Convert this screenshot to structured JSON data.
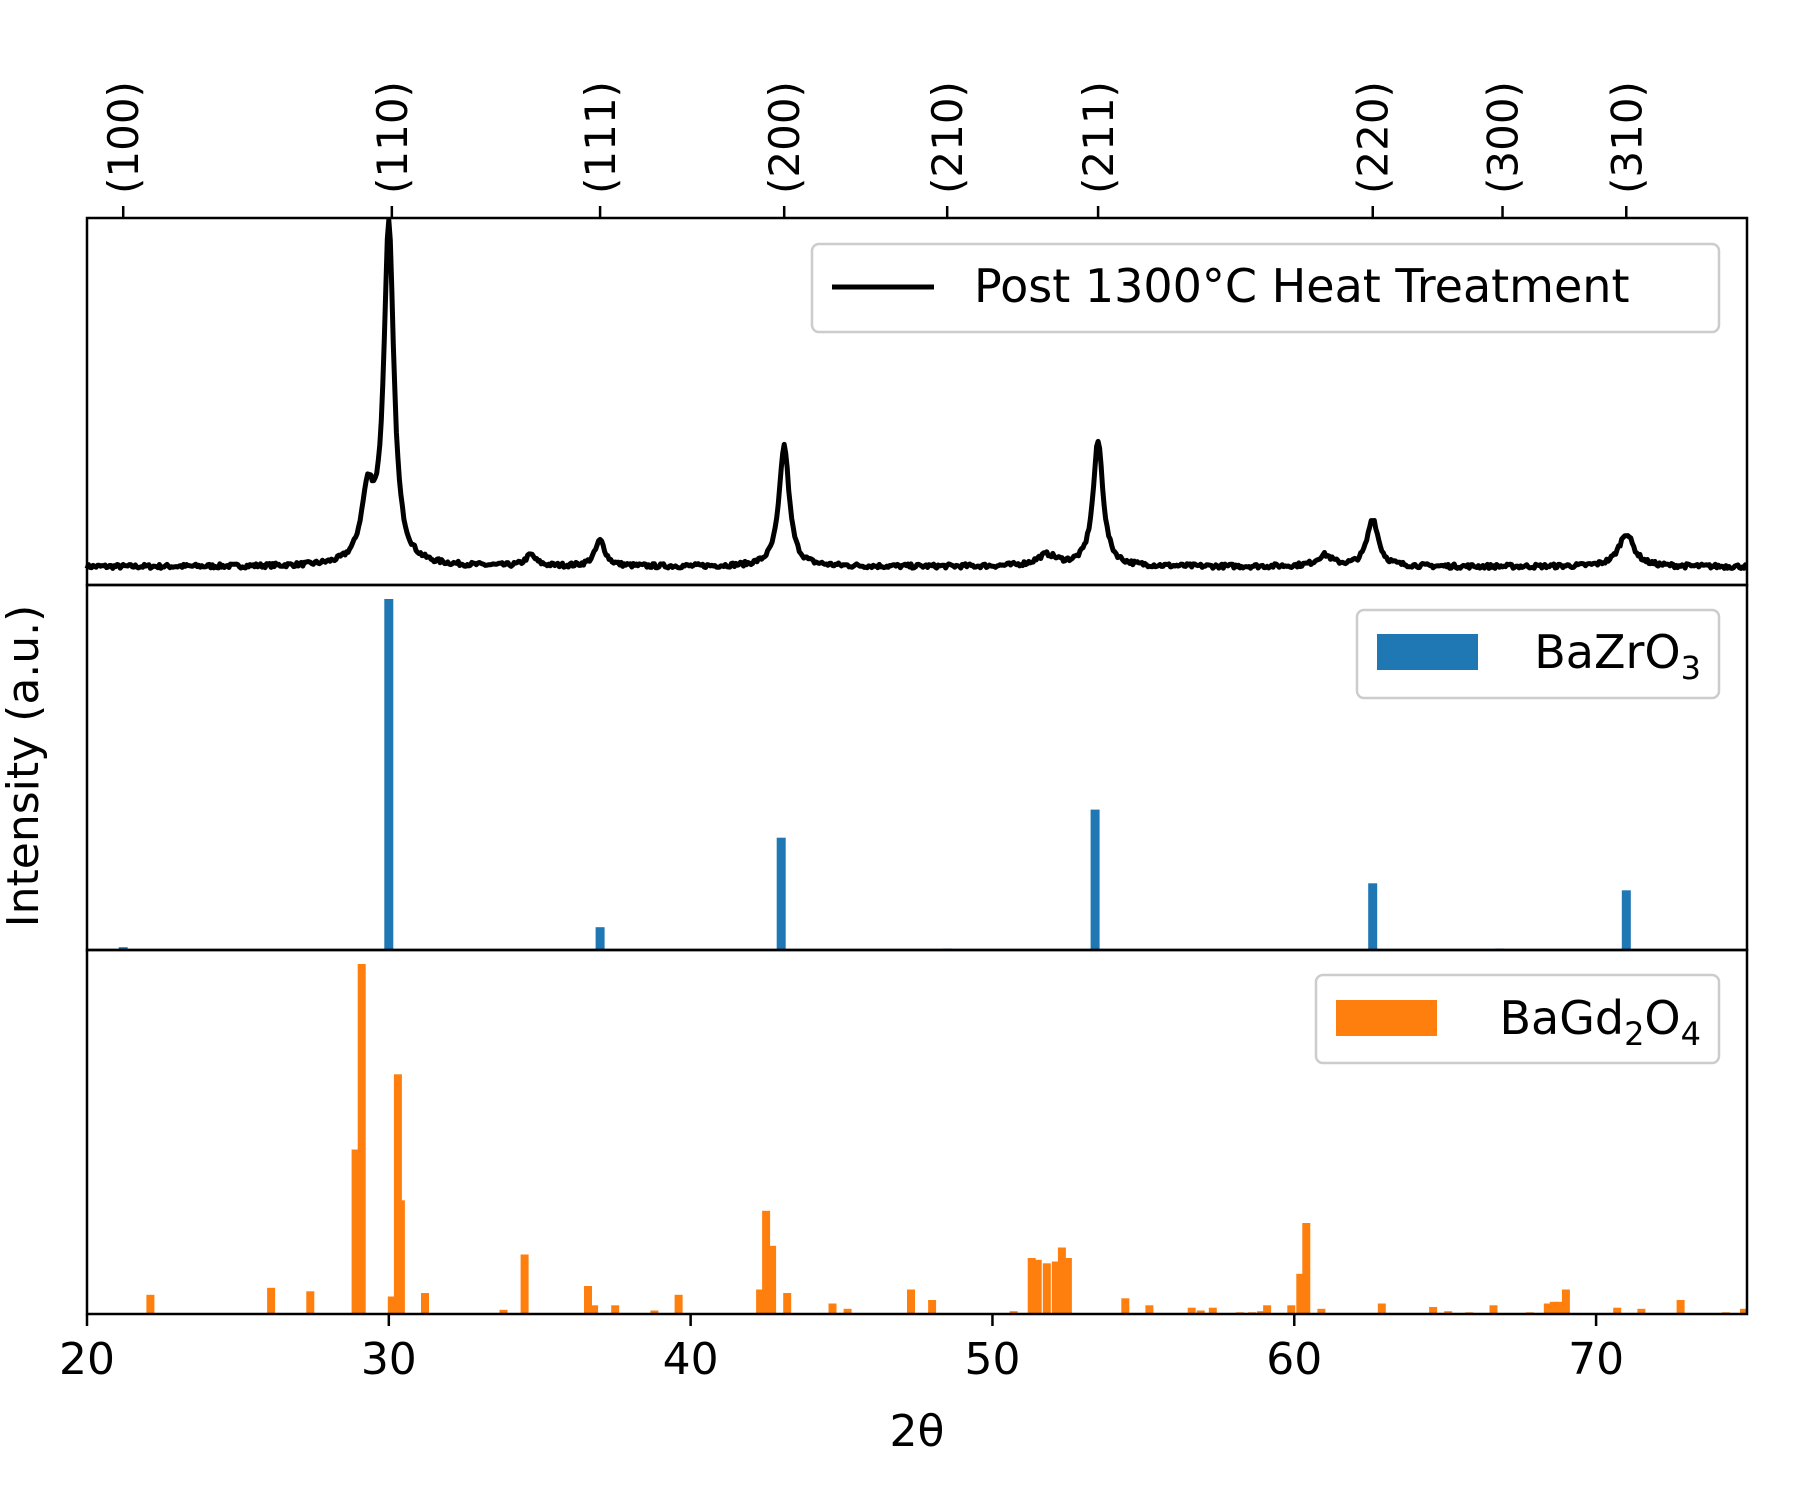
{
  "chart_data": {
    "type": "line",
    "xlabel": "2θ",
    "ylabel": "Intensity (a.u.)",
    "xlim": [
      20,
      75
    ],
    "x_ticks": [
      "20",
      "30",
      "40",
      "50",
      "60",
      "70"
    ],
    "grid": false,
    "top_axis_hkl": [
      {
        "label": "(100)",
        "x": 21.2
      },
      {
        "label": "(110)",
        "x": 30.1
      },
      {
        "label": "(111)",
        "x": 37.0
      },
      {
        "label": "(200)",
        "x": 43.1
      },
      {
        "label": "(210)",
        "x": 48.5
      },
      {
        "label": "(211)",
        "x": 53.5
      },
      {
        "label": "(220)",
        "x": 62.6
      },
      {
        "label": "(300)",
        "x": 66.9
      },
      {
        "label": "(310)",
        "x": 71.0
      }
    ],
    "panels": [
      {
        "type": "line",
        "legend": "Post 1300°C Heat Treatment",
        "legend_position": "top-right",
        "color": "#000000",
        "baseline": 0.05,
        "peaks": [
          {
            "x": 29.3,
            "height": 0.18,
            "width": 0.25
          },
          {
            "x": 30.0,
            "height": 0.92,
            "width": 0.2
          },
          {
            "x": 34.7,
            "height": 0.03,
            "width": 0.2
          },
          {
            "x": 37.0,
            "height": 0.07,
            "width": 0.2
          },
          {
            "x": 43.1,
            "height": 0.33,
            "width": 0.2
          },
          {
            "x": 51.8,
            "height": 0.03,
            "width": 0.4
          },
          {
            "x": 53.5,
            "height": 0.34,
            "width": 0.2
          },
          {
            "x": 61.0,
            "height": 0.03,
            "width": 0.3
          },
          {
            "x": 62.6,
            "height": 0.13,
            "width": 0.22
          },
          {
            "x": 71.0,
            "height": 0.09,
            "width": 0.3
          }
        ]
      },
      {
        "type": "bar",
        "legend": "BaZrO",
        "legend_subscript": "3",
        "legend_position": "top-right",
        "color": "#1f77b4",
        "x": [
          21.2,
          30.0,
          37.0,
          43.0,
          48.5,
          53.4,
          62.6,
          66.8,
          71.0
        ],
        "values": [
          0.008,
          1.0,
          0.065,
          0.32,
          0.004,
          0.4,
          0.19,
          0.004,
          0.17
        ]
      },
      {
        "type": "bar",
        "legend": "BaGd",
        "legend_subscript": "2",
        "legend_suffix": "O",
        "legend_subscript2": "4",
        "legend_position": "top-right",
        "color": "#ff7f0e",
        "x": [
          22.1,
          26.1,
          27.4,
          28.9,
          29.1,
          30.1,
          30.3,
          30.4,
          31.2,
          33.8,
          34.5,
          36.6,
          36.8,
          37.5,
          38.8,
          39.6,
          42.3,
          42.5,
          42.7,
          43.2,
          44.7,
          45.2,
          47.3,
          48.0,
          50.7,
          51.3,
          51.5,
          51.8,
          52.1,
          52.3,
          52.5,
          54.4,
          55.2,
          56.6,
          56.9,
          57.3,
          58.2,
          58.6,
          58.9,
          59.1,
          59.9,
          60.2,
          60.4,
          60.9,
          62.9,
          64.6,
          65.1,
          65.8,
          66.6,
          67.8,
          68.4,
          68.6,
          68.8,
          69.0,
          70.7,
          71.5,
          72.8,
          74.3,
          74.9
        ],
        "values": [
          0.055,
          0.075,
          0.065,
          0.47,
          1.0,
          0.05,
          0.685,
          0.325,
          0.06,
          0.012,
          0.17,
          0.08,
          0.025,
          0.025,
          0.01,
          0.055,
          0.07,
          0.295,
          0.195,
          0.06,
          0.03,
          0.015,
          0.07,
          0.04,
          0.008,
          0.16,
          0.155,
          0.145,
          0.15,
          0.19,
          0.16,
          0.045,
          0.025,
          0.018,
          0.01,
          0.018,
          0.005,
          0.005,
          0.008,
          0.025,
          0.025,
          0.115,
          0.26,
          0.015,
          0.03,
          0.02,
          0.008,
          0.005,
          0.025,
          0.005,
          0.03,
          0.035,
          0.035,
          0.07,
          0.018,
          0.015,
          0.04,
          0.005,
          0.015
        ]
      }
    ]
  }
}
